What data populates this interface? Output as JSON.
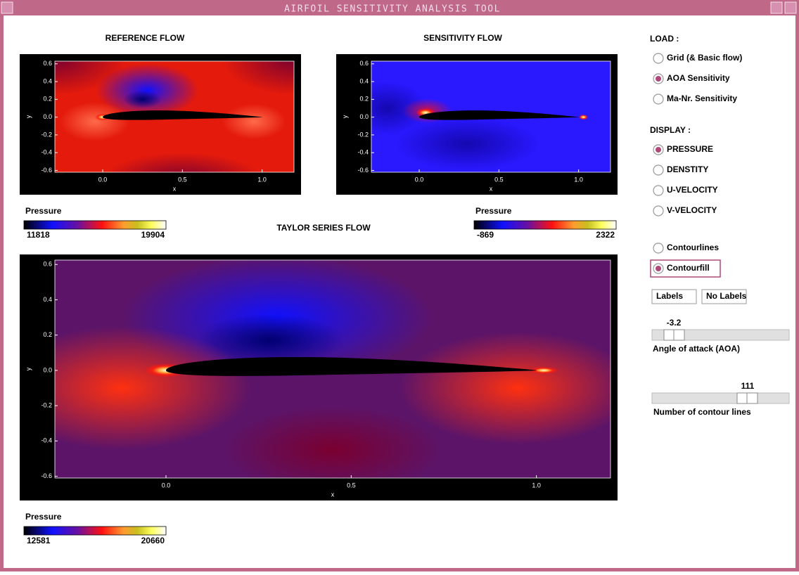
{
  "window": {
    "title": "AIRFOIL SENSITIVITY ANALYSIS TOOL"
  },
  "plots": [
    {
      "title": "REFERENCE FLOW",
      "xlabel": "x",
      "ylabel": "y",
      "xlim": [
        -0.3,
        1.2
      ],
      "ylim": [
        -0.62,
        0.63
      ],
      "xticks": [
        {
          "value": 0,
          "label": "0.0"
        },
        0.5,
        {
          "value": 1,
          "label": "1.0"
        }
      ],
      "yticks": [
        -0.6,
        -0.4,
        -0.2,
        {
          "value": 0,
          "label": "0.0"
        },
        0.2,
        0.4,
        0.6
      ],
      "colorbar": {
        "label": "Pressure",
        "min": 11818,
        "max": 19904
      }
    },
    {
      "title": "SENSITIVITY FLOW",
      "xlabel": "x",
      "ylabel": "y",
      "xlim": [
        -0.3,
        1.2
      ],
      "ylim": [
        -0.62,
        0.63
      ],
      "xticks": [
        {
          "value": 0,
          "label": "0.0"
        },
        0.5,
        {
          "value": 1,
          "label": "1.0"
        }
      ],
      "yticks": [
        -0.6,
        -0.4,
        -0.2,
        {
          "value": 0,
          "label": "0.0"
        },
        0.2,
        0.4,
        0.6
      ],
      "colorbar": {
        "label": "Pressure",
        "min": -869,
        "max": 2322
      }
    },
    {
      "title": "TAYLOR SERIES FLOW",
      "xlabel": "x",
      "ylabel": "y",
      "xlim": [
        -0.3,
        1.2
      ],
      "ylim": [
        -0.61,
        0.625
      ],
      "xticks": [
        {
          "value": 0,
          "label": "0.0"
        },
        0.5,
        {
          "value": 1,
          "label": "1.0"
        }
      ],
      "yticks": [
        -0.6,
        -0.4,
        -0.2,
        {
          "value": 0,
          "label": "0.0"
        },
        0.2,
        0.4,
        0.6
      ],
      "colorbar": {
        "label": "Pressure",
        "min": 12581,
        "max": 20660
      }
    }
  ],
  "load": {
    "heading": "LOAD :",
    "options": [
      "Grid (& Basic flow)",
      "AOA Sensitivity",
      "Ma-Nr. Sensitivity"
    ],
    "selected": 1
  },
  "display": {
    "heading": "DISPLAY :",
    "options": [
      "PRESSURE",
      "DENSTITY",
      "U-VELOCITY",
      "V-VELOCITY"
    ],
    "selected": 0
  },
  "render": {
    "options": [
      "Contourlines",
      "Contourfill"
    ],
    "selected": 1
  },
  "buttons": [
    "Labels",
    "No Labels"
  ],
  "sliders": [
    {
      "value": -3.2,
      "label": "Angle of attack (AOA)"
    },
    {
      "value": 111,
      "label": "Number of contour lines"
    }
  ]
}
